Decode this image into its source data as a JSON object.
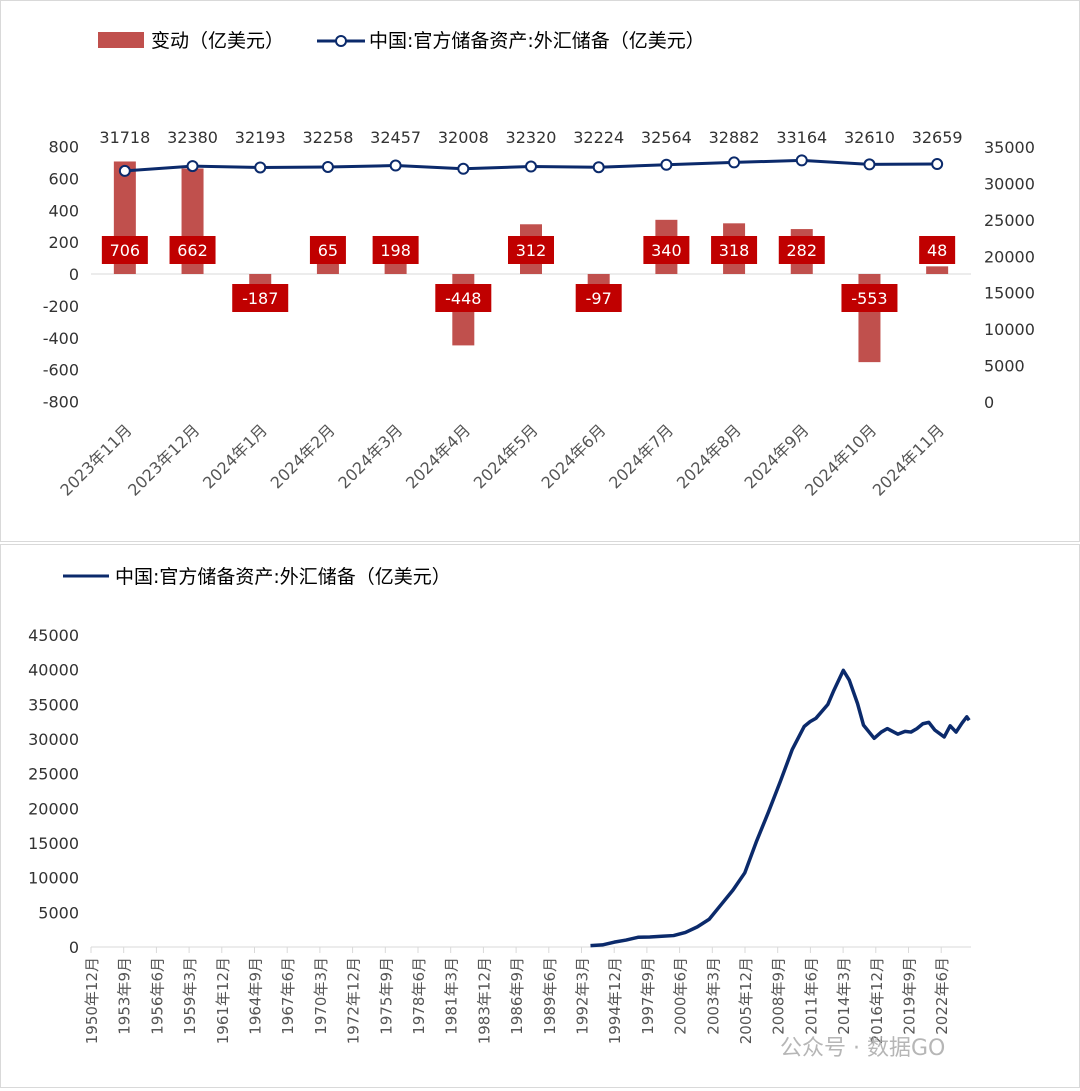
{
  "chart_data": [
    {
      "type": "bar+line",
      "legend": {
        "bar_label": "变动（亿美元）",
        "line_label": "中国:官方储备资产:外汇储备（亿美元）",
        "placement": "top"
      },
      "categories": [
        "2023年11月",
        "2023年12月",
        "2024年1月",
        "2024年2月",
        "2024年3月",
        "2024年4月",
        "2024年5月",
        "2024年6月",
        "2024年7月",
        "2024年8月",
        "2024年9月",
        "2024年10月",
        "2024年11月"
      ],
      "bar_values": [
        706,
        662,
        -187,
        65,
        198,
        -448,
        312,
        -97,
        340,
        318,
        282,
        -553,
        48
      ],
      "line_values": [
        31718,
        32380,
        32193,
        32258,
        32457,
        32008,
        32320,
        32224,
        32564,
        32882,
        33164,
        32610,
        32659
      ],
      "y_left": {
        "range": [
          -800,
          800
        ],
        "ticks": [
          800,
          600,
          400,
          200,
          0,
          -200,
          -400,
          -600,
          -800
        ]
      },
      "y_right": {
        "range": [
          0,
          35000
        ],
        "ticks": [
          35000,
          30000,
          25000,
          20000,
          15000,
          10000,
          5000,
          0
        ]
      },
      "colors": {
        "bar": "#c0504d",
        "bar_label_bg": "#c00000",
        "line": "#0b2a6b"
      },
      "grid": false
    },
    {
      "type": "line",
      "legend": {
        "label": "中国:官方储备资产:外汇储备（亿美元）",
        "placement": "top-left"
      },
      "x_ticks": [
        "1950年12月",
        "1953年9月",
        "1956年6月",
        "1959年3月",
        "1961年12月",
        "1964年9月",
        "1967年6月",
        "1970年3月",
        "1972年12月",
        "1975年9月",
        "1978年6月",
        "1981年3月",
        "1983年12月",
        "1986年9月",
        "1989年6月",
        "1992年3月",
        "1994年12月",
        "1997年9月",
        "2000年6月",
        "2003年3月",
        "2005年12月",
        "2008年9月",
        "2011年6月",
        "2014年3月",
        "2016年12月",
        "2019年9月",
        "2022年6月"
      ],
      "y_range": [
        0,
        45000
      ],
      "y_ticks": [
        45000,
        40000,
        35000,
        30000,
        25000,
        20000,
        15000,
        10000,
        5000,
        0
      ],
      "x": [
        1993,
        1994,
        1995,
        1996,
        1997,
        1998,
        1999,
        2000,
        2001,
        2002,
        2003,
        2004,
        2005,
        2006,
        2007,
        2008,
        2009,
        2010,
        2011,
        2011.5,
        2012,
        2013,
        2013.5,
        2014.3,
        2014.8,
        2015.5,
        2016,
        2016.9,
        2017.5,
        2018,
        2018.9,
        2019.5,
        2020,
        2020.5,
        2021,
        2021.5,
        2022,
        2022.8,
        2023.3,
        2023.8,
        2024.3,
        2024.7,
        2024.9
      ],
      "y": [
        200,
        300,
        700,
        1000,
        1400,
        1450,
        1550,
        1650,
        2100,
        2900,
        4000,
        6100,
        8200,
        10700,
        15300,
        19500,
        23900,
        28500,
        31800,
        32500,
        33000,
        35000,
        37000,
        39900,
        38500,
        35100,
        32000,
        30100,
        31000,
        31500,
        30700,
        31100,
        31000,
        31500,
        32200,
        32400,
        31300,
        30300,
        31900,
        31000,
        32300,
        33200,
        32700
      ],
      "colors": {
        "line": "#0b2a6b"
      },
      "grid": false
    }
  ],
  "watermark": "公众号 · 数据GO"
}
